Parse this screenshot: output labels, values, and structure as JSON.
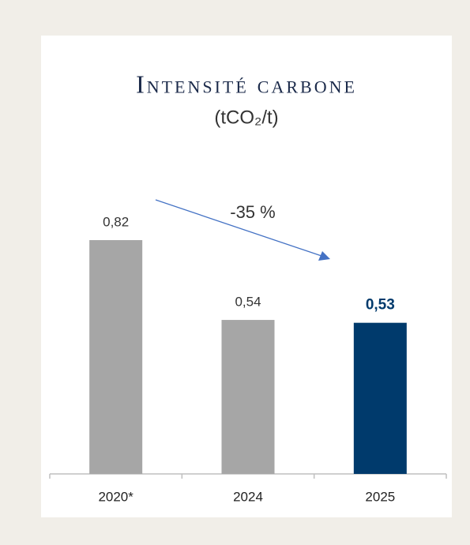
{
  "chart_data": {
    "type": "bar",
    "title": "Intensité carbone",
    "subtitle": "(tCO₂/t)",
    "categories": [
      "2020*",
      "2024",
      "2025"
    ],
    "values": [
      0.82,
      0.54,
      0.53
    ],
    "value_labels": [
      "0,82",
      "0,54",
      "0,53"
    ],
    "colors": [
      "#a6a6a6",
      "#a6a6a6",
      "#003a6c"
    ],
    "annotation": "-35 %"
  }
}
